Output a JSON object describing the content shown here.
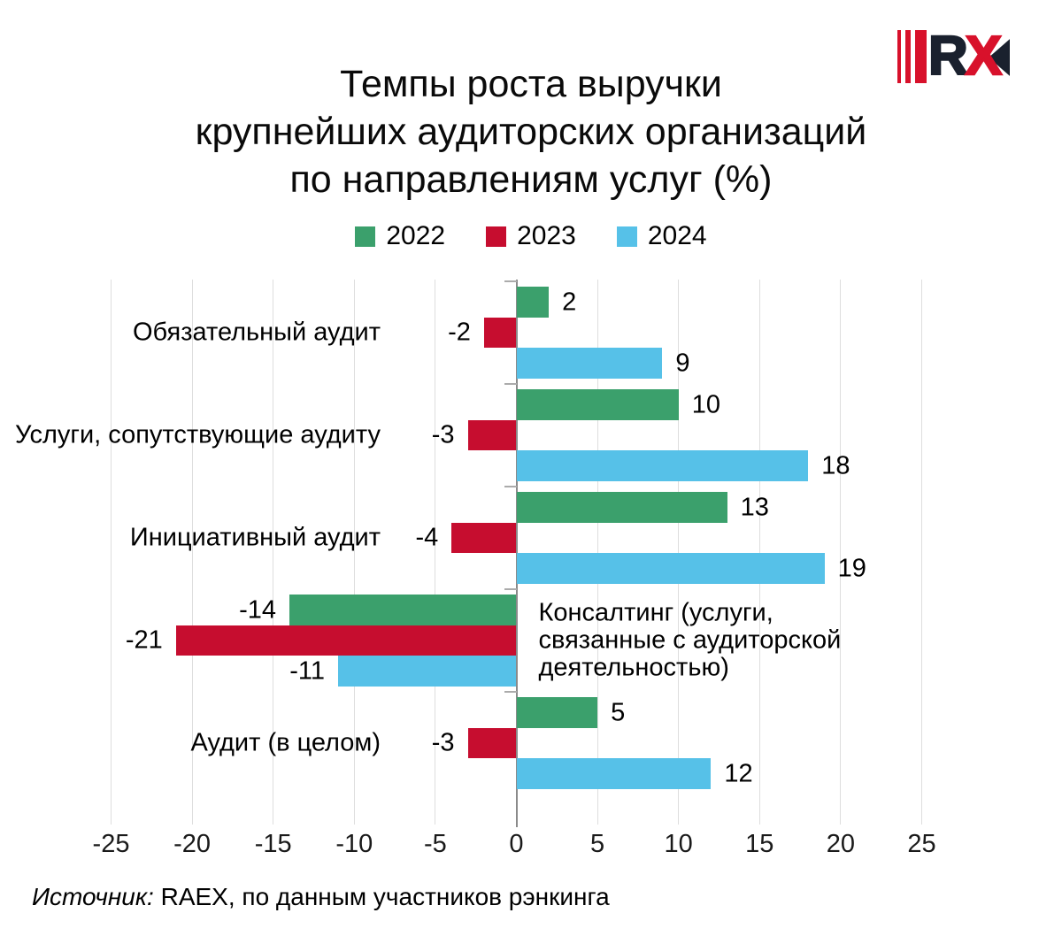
{
  "logo": {
    "letter_r": "R",
    "letter_x": "X",
    "red": "#d8112b",
    "dark": "#1a212e"
  },
  "source": {
    "prefix": "Источник:",
    "text": " RAEX, по данным участников рэнкинга"
  },
  "chart_data": {
    "type": "bar",
    "orientation": "horizontal",
    "title": "Темпы роста выручки\nкрупнейших аудиторских организаций\nпо направлениям услуг (%)",
    "categories": [
      "Обязательный аудит",
      "Услуги, сопутствующие аудиту",
      "Инициативный аудит",
      "Консалтинг (услуги, связанные с аудиторской деятельностью)",
      "Аудит (в целом)"
    ],
    "category_label_side": [
      "left",
      "left",
      "left",
      "right",
      "left"
    ],
    "series": [
      {
        "name": "2022",
        "color": "#3ba06c",
        "values": [
          2,
          10,
          13,
          -14,
          5
        ]
      },
      {
        "name": "2023",
        "color": "#c60d2f",
        "values": [
          -2,
          -3,
          -4,
          -21,
          -3
        ]
      },
      {
        "name": "2024",
        "color": "#56c1e8",
        "values": [
          9,
          18,
          19,
          -11,
          12
        ]
      }
    ],
    "xticks": [
      -25,
      -20,
      -15,
      -10,
      -5,
      0,
      5,
      10,
      15,
      20,
      25
    ],
    "xlim": [
      -25,
      25
    ],
    "grid": true,
    "legend_position": "top",
    "value_labels": "outside-end",
    "colors": {
      "gridline": "#dedede",
      "zero_axis": "#8a8a8a",
      "category_tick": "#ababab"
    }
  }
}
